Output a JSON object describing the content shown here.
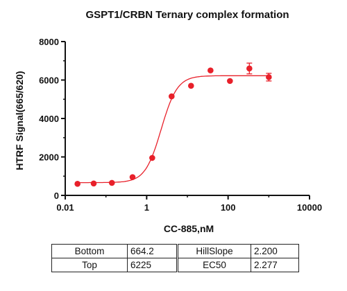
{
  "chart_data": {
    "type": "scatter",
    "title": "GSPT1/CRBN Ternary complex formation",
    "xlabel": "CC-885,nM",
    "ylabel": "HTRF Signal(665/620)",
    "x_scale": "log",
    "xlim": [
      0.01,
      10000
    ],
    "ylim": [
      0,
      8000
    ],
    "x_ticks": [
      "0.01",
      "1",
      "100",
      "10000"
    ],
    "y_ticks": [
      "0",
      "2000",
      "4000",
      "6000",
      "8000"
    ],
    "grid": false,
    "series": [
      {
        "points": [
          {
            "x": 0.02,
            "y": 600,
            "err": 0
          },
          {
            "x": 0.05,
            "y": 620,
            "err": 0
          },
          {
            "x": 0.14,
            "y": 650,
            "err": 0
          },
          {
            "x": 0.45,
            "y": 950,
            "err": 0
          },
          {
            "x": 1.37,
            "y": 1950,
            "err": 0
          },
          {
            "x": 4.1,
            "y": 5150,
            "err": 0
          },
          {
            "x": 12.3,
            "y": 5700,
            "err": 0
          },
          {
            "x": 37,
            "y": 6500,
            "err": 0
          },
          {
            "x": 111,
            "y": 5950,
            "err": 0
          },
          {
            "x": 333,
            "y": 6600,
            "err": 280
          },
          {
            "x": 1000,
            "y": 6150,
            "err": 200
          }
        ],
        "fit": {
          "model": "four-parameter logistic",
          "bottom": 664.2,
          "top": 6225,
          "hill_slope": 2.2,
          "ec50": 2.277
        },
        "color": "#e8202a"
      }
    ]
  },
  "fit_table": {
    "rows": [
      [
        "Bottom",
        "664.2",
        "HillSlope",
        "2.200"
      ],
      [
        "Top",
        "6225",
        "EC50",
        "2.277"
      ]
    ]
  }
}
